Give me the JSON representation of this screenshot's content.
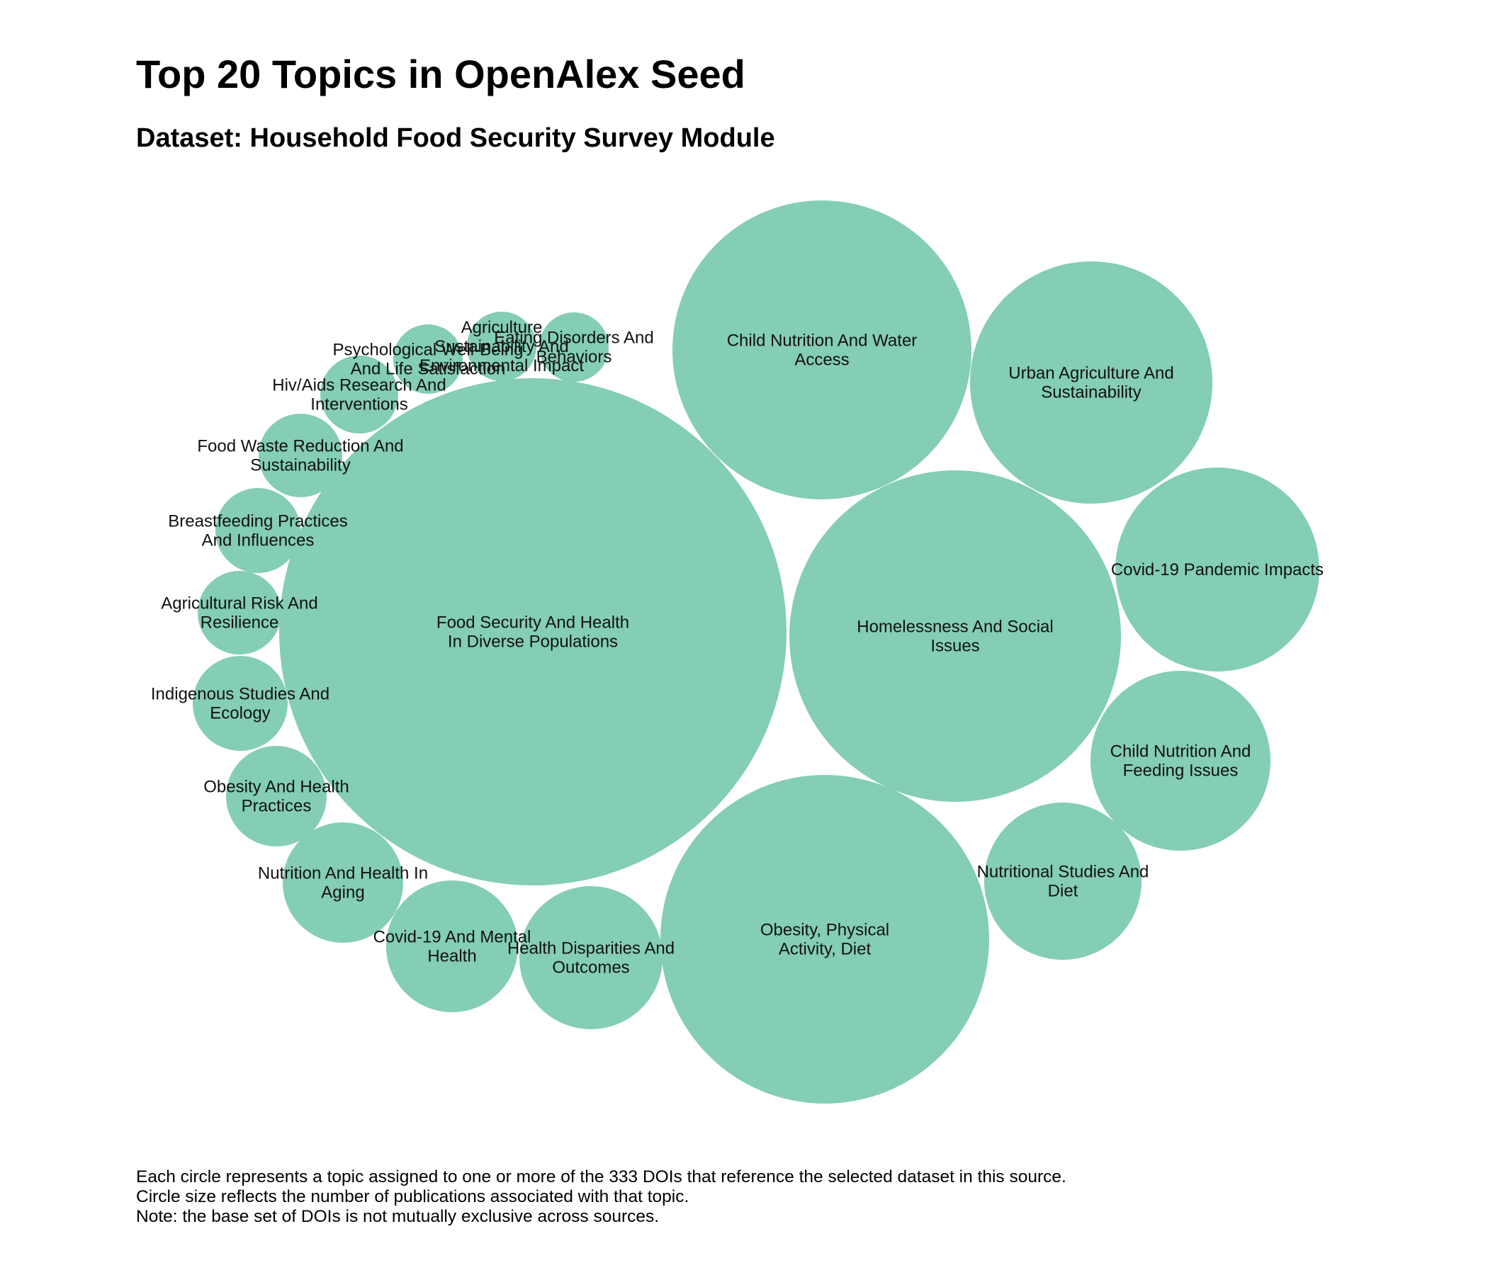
{
  "title": "Top 20 Topics in OpenAlex Seed",
  "subtitle": "Dataset: Household Food Security Survey Module",
  "notes": [
    "Each circle represents a topic assigned to one or more of the 333 DOIs that reference the selected dataset in this source.",
    "Circle size reflects the number of publications associated with that topic.",
    "Note: the base set of DOIs is not mutually exclusive across sources."
  ],
  "chart_data": {
    "type": "bubble",
    "bubble_color": "#84CDB6",
    "bubbles": [
      {
        "label_lines": [
          "Food Security And Health",
          "In Diverse Populations"
        ]
      },
      {
        "label_lines": [
          "Child Nutrition And Water",
          "Access"
        ]
      },
      {
        "label_lines": [
          "Urban Agriculture And",
          "Sustainability"
        ]
      },
      {
        "label_lines": [
          "Homelessness And Social",
          "Issues"
        ]
      },
      {
        "label_lines": [
          "Covid-19 Pandemic Impacts"
        ]
      },
      {
        "label_lines": [
          "Child Nutrition And",
          "Feeding Issues"
        ]
      },
      {
        "label_lines": [
          "Obesity, Physical",
          "Activity, Diet"
        ]
      },
      {
        "label_lines": [
          "Nutritional Studies And",
          "Diet"
        ]
      },
      {
        "label_lines": [
          "Health Disparities And",
          "Outcomes"
        ]
      },
      {
        "label_lines": [
          "Covid-19 And Mental",
          "Health"
        ]
      },
      {
        "label_lines": [
          "Nutrition And Health In",
          "Aging"
        ]
      },
      {
        "label_lines": [
          "Obesity And Health",
          "Practices"
        ]
      },
      {
        "label_lines": [
          "Indigenous Studies And",
          "Ecology"
        ]
      },
      {
        "label_lines": [
          "Agricultural Risk And",
          "Resilience"
        ]
      },
      {
        "label_lines": [
          "Breastfeeding Practices",
          "And Influences"
        ]
      },
      {
        "label_lines": [
          "Food Waste Reduction And",
          "Sustainability"
        ]
      },
      {
        "label_lines": [
          "Hiv/Aids Research And",
          "Interventions"
        ]
      },
      {
        "label_lines": [
          "Psychological Well-Being",
          "And Life Satisfaction"
        ]
      },
      {
        "label_lines": [
          "Agriculture",
          "Sustainability And",
          "Environmental Impact"
        ]
      },
      {
        "label_lines": [
          "Eating Disorders And",
          "Behaviors"
        ]
      }
    ]
  }
}
